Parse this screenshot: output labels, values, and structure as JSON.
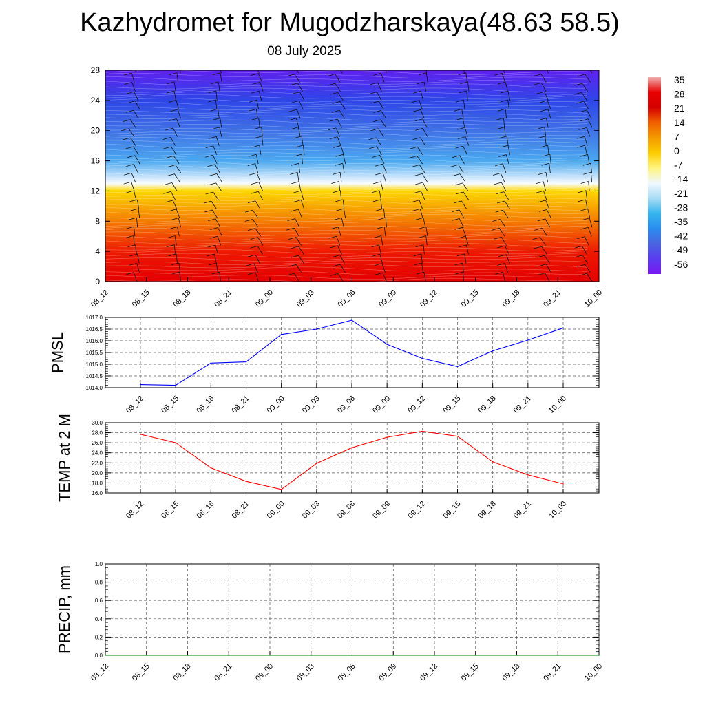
{
  "page": {
    "title": "Kazhydromet for Mugodzharskaya(48.63 58.5)",
    "subtitle": "08 July 2025"
  },
  "chart_data": [
    {
      "type": "heatmap",
      "name": "upper-air-temperature-wind",
      "ylim": [
        0,
        28
      ],
      "yticks": [
        0,
        4,
        8,
        12,
        16,
        20,
        24,
        28
      ],
      "xticklabels": [
        "08_12",
        "08_15",
        "08_18",
        "08_21",
        "09_00",
        "09_03",
        "09_06",
        "09_09",
        "09_12",
        "09_15",
        "09_18",
        "09_21",
        "10_00"
      ],
      "colorbar": {
        "labels": [
          "35",
          "28",
          "21",
          "14",
          "7",
          "0",
          "-7",
          "-14",
          "-21",
          "-28",
          "-35",
          "-42",
          "-49",
          "-56"
        ],
        "colors": [
          "#f0b0b0",
          "#e80000",
          "#d40000",
          "#f06000",
          "#f49a00",
          "#fccc00",
          "#fff480",
          "#f0f8ff",
          "#a8dcf5",
          "#35b5ee",
          "#2a8df0",
          "#4a64e0",
          "#5a3cf0",
          "#7a18f0"
        ]
      },
      "bands": [
        {
          "level": 0,
          "value": 35,
          "color": "#e40000"
        },
        {
          "level": 4,
          "value": 28,
          "color": "#ee1a00"
        },
        {
          "level": 8,
          "value": 20,
          "color": "#f47c00"
        },
        {
          "level": 12,
          "value": 5,
          "color": "#fdd600"
        },
        {
          "level": 13,
          "value": -14,
          "color": "#f8fbff"
        },
        {
          "level": 16,
          "value": -28,
          "color": "#4aa8f0"
        },
        {
          "level": 20,
          "value": -40,
          "color": "#3f71e6"
        },
        {
          "level": 24,
          "value": -52,
          "color": "#2e46e8"
        },
        {
          "level": 28,
          "value": -56,
          "color": "#6020f0"
        }
      ],
      "wind_barbs": true
    },
    {
      "type": "line",
      "name": "pmsl",
      "ylabel": "PMSL",
      "ylim": [
        1014.0,
        1017.0
      ],
      "yticks": [
        "1014.0",
        "1014.5",
        "1015.0",
        "1015.5",
        "1016.0",
        "1016.5",
        "1017.0"
      ],
      "categories": [
        "08_12",
        "08_15",
        "08_18",
        "08_21",
        "09_00",
        "09_03",
        "09_06",
        "09_09",
        "09_12",
        "09_15",
        "09_18",
        "09_21",
        "10_00"
      ],
      "values": [
        1014.13,
        1014.1,
        1015.05,
        1015.1,
        1016.27,
        1016.5,
        1016.88,
        1015.85,
        1015.25,
        1014.9,
        1015.57,
        1016.03,
        1016.55
      ],
      "color": "#0000ff",
      "grid": true
    },
    {
      "type": "line",
      "name": "temp2m",
      "ylabel": "TEMP at 2 M",
      "ylim": [
        16.0,
        30.0
      ],
      "yticks": [
        "16.0",
        "18.0",
        "20.0",
        "22.0",
        "24.0",
        "26.0",
        "28.0",
        "30.0"
      ],
      "categories": [
        "08_12",
        "08_15",
        "08_18",
        "08_21",
        "09_00",
        "09_03",
        "09_06",
        "09_09",
        "09_12",
        "09_15",
        "09_18",
        "09_21",
        "10_00"
      ],
      "values": [
        27.7,
        26.0,
        21.0,
        18.3,
        16.7,
        21.9,
        25.0,
        27.1,
        28.3,
        27.3,
        22.2,
        19.6,
        17.8
      ],
      "color": "#ff0000",
      "grid": true
    },
    {
      "type": "line",
      "name": "precip",
      "ylabel": "PRECIP, mm",
      "ylim": [
        0.0,
        1.0
      ],
      "yticks": [
        "0.0",
        "0.2",
        "0.4",
        "0.6",
        "0.8",
        "1.0"
      ],
      "categories": [
        "08_12",
        "08_15",
        "08_18",
        "08_21",
        "09_00",
        "09_03",
        "09_06",
        "09_09",
        "09_12",
        "09_15",
        "09_18",
        "09_21",
        "10_00"
      ],
      "values": [
        0,
        0,
        0,
        0,
        0,
        0,
        0,
        0,
        0,
        0,
        0,
        0,
        0
      ],
      "color": "#008000",
      "grid": true
    }
  ]
}
